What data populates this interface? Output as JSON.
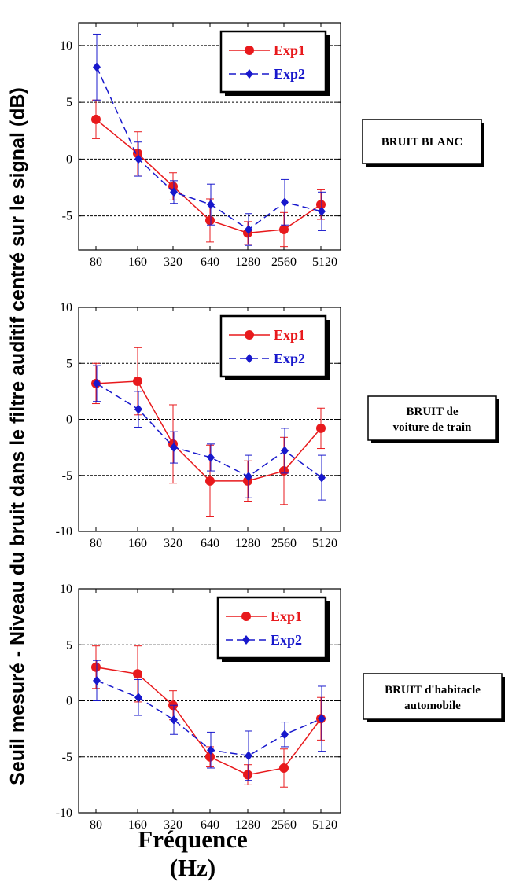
{
  "figure": {
    "ylabel": "Seuil mesuré - Niveau du bruit dans le filtre auditif centré sur le signal (dB)",
    "xlabel": "Fréquence (Hz)"
  },
  "colors": {
    "exp1": "#e8191c",
    "exp2": "#1818cc",
    "axis": "#000000"
  },
  "chart_data": [
    {
      "type": "line",
      "panel_label": "BRUIT BLANC",
      "categories": [
        "80",
        "160",
        "320",
        "640",
        "1280",
        "2560",
        "5120"
      ],
      "ylim": [
        -8,
        12
      ],
      "yticks": [
        -5,
        0,
        5,
        10
      ],
      "grid_y": [
        -5,
        5,
        10
      ],
      "zero_line": 0,
      "legend": "top-right",
      "series": [
        {
          "name": "Exp1",
          "marker": "circle",
          "line": "solid",
          "values": [
            3.5,
            0.5,
            -2.4,
            -5.4,
            -6.5,
            -6.2,
            -4.0
          ],
          "errors": [
            1.7,
            1.9,
            1.2,
            1.9,
            1.0,
            1.5,
            1.3
          ]
        },
        {
          "name": "Exp2",
          "marker": "diamond",
          "line": "dashed",
          "values": [
            8.1,
            0.0,
            -2.9,
            -4.0,
            -6.2,
            -3.8,
            -4.6
          ],
          "errors": [
            2.9,
            1.5,
            1.0,
            1.8,
            1.4,
            2.0,
            1.7
          ]
        }
      ]
    },
    {
      "type": "line",
      "panel_label": "BRUIT de voiture de train",
      "categories": [
        "80",
        "160",
        "320",
        "640",
        "1280",
        "2560",
        "5120"
      ],
      "ylim": [
        -10,
        10
      ],
      "yticks": [
        -10,
        -5,
        0,
        5,
        10
      ],
      "grid_y": [
        -5,
        5
      ],
      "zero_line": 0,
      "legend": "top-right",
      "series": [
        {
          "name": "Exp1",
          "marker": "circle",
          "line": "solid",
          "values": [
            3.2,
            3.4,
            -2.2,
            -5.5,
            -5.5,
            -4.6,
            -0.8
          ],
          "errors": [
            1.8,
            3.0,
            3.5,
            3.2,
            1.8,
            3.0,
            1.8
          ]
        },
        {
          "name": "Exp2",
          "marker": "diamond",
          "line": "dashed",
          "values": [
            3.2,
            0.9,
            -2.5,
            -3.4,
            -5.1,
            -2.8,
            -5.2
          ],
          "errors": [
            1.6,
            1.6,
            1.4,
            1.2,
            1.9,
            2.0,
            2.0
          ]
        }
      ]
    },
    {
      "type": "line",
      "panel_label": "BRUIT d'habitacle automobile",
      "categories": [
        "80",
        "160",
        "320",
        "640",
        "1280",
        "2560",
        "5120"
      ],
      "ylim": [
        -10,
        10
      ],
      "yticks": [
        -10,
        -5,
        0,
        5,
        10
      ],
      "grid_y": [
        -5,
        5
      ],
      "zero_line": 0,
      "legend": "top-right",
      "series": [
        {
          "name": "Exp1",
          "marker": "circle",
          "line": "solid",
          "values": [
            3.0,
            2.4,
            -0.4,
            -5.0,
            -6.6,
            -6.0,
            -1.6
          ],
          "errors": [
            1.9,
            2.5,
            1.3,
            0.9,
            0.9,
            1.7,
            1.9
          ]
        },
        {
          "name": "Exp2",
          "marker": "diamond",
          "line": "dashed",
          "values": [
            1.8,
            0.3,
            -1.7,
            -4.4,
            -4.9,
            -3.0,
            -1.6
          ],
          "errors": [
            1.8,
            1.6,
            1.3,
            1.6,
            2.2,
            1.1,
            2.9
          ]
        }
      ]
    }
  ]
}
